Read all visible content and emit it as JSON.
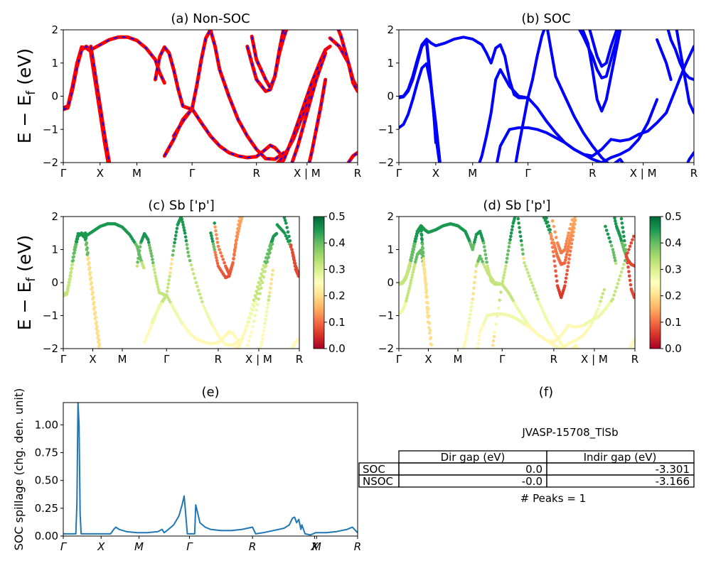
{
  "chart_data": [
    {
      "id": "a",
      "type": "line",
      "title": "(a) Non-SOC",
      "ylabel_left": "E − E",
      "ylabel_sub": "f",
      "ylabel_right": " (eV)",
      "ylim": [
        -2,
        2
      ],
      "yticks": [
        "2",
        "1",
        "0",
        "−1",
        "−2"
      ],
      "xticks": [
        "Γ",
        "X",
        "M",
        "Γ",
        "R",
        "X | M",
        "R"
      ],
      "series_colors": [
        "#ff0000",
        "#0000ff"
      ],
      "bands": [
        {
          "x": [
            0,
            0.5,
            1,
            1.5,
            2,
            2.5,
            3
          ],
          "y": [
            -0.35,
            -0.3,
            0.3,
            1.0,
            1.48,
            1.45,
            1.35
          ]
        },
        {
          "x": [
            3,
            4,
            5,
            6,
            7,
            8,
            9,
            10,
            10.5,
            11
          ],
          "y": [
            1.4,
            1.55,
            1.7,
            1.78,
            1.78,
            1.68,
            1.45,
            1.1,
            0.7,
            0.4
          ]
        },
        {
          "x": [
            0,
            0.5,
            1,
            1.5,
            2,
            2.5,
            3
          ],
          "y": [
            -0.4,
            -0.35,
            0.2,
            0.9,
            1.4,
            1.5,
            1.4
          ]
        },
        {
          "x": [
            3,
            3.5,
            4,
            4.5,
            5,
            5.5
          ],
          "y": [
            1.3,
            0.4,
            -0.5,
            -1.4,
            -2.2,
            -2.5
          ]
        },
        {
          "x": [
            3,
            3.5,
            4,
            4.5,
            5,
            5.5
          ],
          "y": [
            1.5,
            0.6,
            -0.3,
            -1.2,
            -2.0,
            -2.5
          ]
        },
        {
          "x": [
            10,
            10.5,
            11,
            11.5,
            12,
            12.5,
            13,
            14
          ],
          "y": [
            0.5,
            1.2,
            1.48,
            1.3,
            0.8,
            0.2,
            -0.3,
            -0.4
          ]
        },
        {
          "x": [
            14,
            15,
            16,
            17,
            18,
            19,
            20,
            21
          ],
          "y": [
            -0.38,
            -0.8,
            -1.2,
            -1.5,
            -1.7,
            -1.8,
            -1.85,
            -1.82
          ]
        },
        {
          "x": [
            21,
            22,
            22.5,
            23,
            23.5
          ],
          "y": [
            -1.82,
            -1.6,
            -1.48,
            -1.55,
            -1.7
          ]
        },
        {
          "x": [
            14,
            14.5,
            15,
            15.5,
            16,
            16.5,
            17
          ],
          "y": [
            -0.38,
            0.3,
            1.1,
            1.75,
            2.0,
            1.5,
            0.8
          ]
        },
        {
          "x": [
            17,
            18,
            19,
            20,
            21,
            22,
            23,
            24
          ],
          "y": [
            0.8,
            0.0,
            -0.7,
            -1.2,
            -1.6,
            -1.88,
            -1.9,
            -1.7
          ]
        },
        {
          "x": [
            11,
            12,
            13,
            14
          ],
          "y": [
            -1.8,
            -1.3,
            -0.7,
            -0.38
          ]
        },
        {
          "x": [
            12,
            13,
            14
          ],
          "y": [
            -1.2,
            -0.75,
            -0.38
          ]
        },
        {
          "x": [
            20,
            20.5,
            21,
            22,
            22.5,
            23,
            23.5,
            24,
            24.5
          ],
          "y": [
            1.5,
            1.0,
            0.5,
            0.15,
            0.2,
            0.6,
            1.3,
            1.8,
            2.2
          ]
        },
        {
          "x": [
            20.5,
            21,
            22,
            22.5,
            23,
            23.5,
            24
          ],
          "y": [
            1.8,
            1.1,
            0.5,
            0.25,
            0.6,
            1.4,
            2.1
          ]
        },
        {
          "x": [
            22,
            23,
            24,
            25,
            26,
            27,
            28,
            28.5,
            29
          ],
          "y": [
            -2.2,
            -2.1,
            -1.8,
            -1.3,
            -0.6,
            0.2,
            1.0,
            1.4,
            1.5
          ]
        },
        {
          "x": [
            23,
            24,
            25,
            26,
            27,
            28,
            28.5
          ],
          "y": [
            -2.3,
            -1.9,
            -1.2,
            -0.4,
            0.4,
            1.1,
            1.4
          ]
        },
        {
          "x": [
            24.5,
            25.5,
            26.5,
            27.5,
            28.5
          ],
          "y": [
            -2.3,
            -1.5,
            -0.5,
            0.5,
            1.3
          ]
        },
        {
          "x": [
            26.5,
            27,
            27.5,
            28,
            28.5
          ],
          "y": [
            -2.3,
            -1.7,
            -1.0,
            -0.3,
            0.5
          ]
        },
        {
          "x": [
            29,
            30,
            31,
            31.5,
            32
          ],
          "y": [
            1.75,
            1.5,
            1.0,
            0.5,
            0.2
          ]
        },
        {
          "x": [
            29.5,
            30.2,
            31,
            31.5,
            32
          ],
          "y": [
            2.3,
            1.8,
            1.0,
            0.4,
            0.15
          ]
        },
        {
          "x": [
            31,
            31.5,
            32
          ],
          "y": [
            -2.0,
            -1.8,
            -1.7
          ]
        }
      ]
    },
    {
      "id": "b",
      "type": "line",
      "title": "(b) SOC",
      "ylim": [
        -2,
        2
      ],
      "yticks": [
        "2",
        "1",
        "0",
        "−1",
        "−2"
      ],
      "xticks": [
        "Γ",
        "X",
        "M",
        "Γ",
        "R",
        "X | M",
        "R"
      ],
      "series_colors": [
        "#0000ff"
      ],
      "bands": [
        {
          "x": [
            0,
            0.5,
            1,
            1.5,
            2,
            2.5,
            3,
            3.5,
            4,
            5,
            6,
            7,
            8,
            9,
            9.5
          ],
          "y": [
            -0.02,
            0.0,
            0.2,
            0.6,
            1.1,
            1.55,
            1.72,
            1.6,
            1.52,
            1.6,
            1.72,
            1.78,
            1.72,
            1.55,
            1.3
          ]
        },
        {
          "x": [
            0,
            0.5,
            1,
            1.5,
            2,
            2.5,
            3
          ],
          "y": [
            -0.05,
            -0.02,
            0.15,
            0.5,
            1.0,
            1.5,
            1.65
          ]
        },
        {
          "x": [
            0,
            0.5,
            1,
            1.5,
            2,
            2.5,
            3,
            3.5,
            4,
            4.5
          ],
          "y": [
            -0.95,
            -0.85,
            -0.55,
            -0.1,
            0.4,
            0.85,
            0.98,
            0.3,
            -0.8,
            -2.1
          ]
        },
        {
          "x": [
            3,
            3.3,
            3.7,
            4,
            4.5
          ],
          "y": [
            1.6,
            0.8,
            -0.3,
            -1.2,
            -2.2
          ]
        },
        {
          "x": [
            3,
            3.3,
            3.7,
            4
          ],
          "y": [
            1.7,
            0.9,
            -0.2,
            -1.4
          ]
        },
        {
          "x": [
            9.5,
            10,
            10.5,
            11,
            11.5
          ],
          "y": [
            1.3,
            1.0,
            1.45,
            1.55,
            1.2
          ]
        },
        {
          "x": [
            11.5,
            12,
            12.5,
            13,
            14
          ],
          "y": [
            1.2,
            0.5,
            0.05,
            -0.05,
            -0.05
          ]
        },
        {
          "x": [
            8.5,
            9,
            9.5,
            10,
            10.5,
            11,
            12,
            13,
            14
          ],
          "y": [
            -2.2,
            -1.8,
            -1.2,
            -0.5,
            0.5,
            0.8,
            0.3,
            0.0,
            -0.05
          ]
        },
        {
          "x": [
            10.5,
            11,
            12,
            13,
            14,
            15,
            16,
            17,
            18,
            19,
            20,
            21,
            22,
            23,
            24,
            25,
            26,
            27,
            28,
            29,
            30,
            31,
            32
          ],
          "y": [
            -2.2,
            -1.5,
            -1.0,
            -0.95,
            -0.95,
            -1.0,
            -1.1,
            -1.25,
            -1.4,
            -1.6,
            -1.75,
            -1.8,
            -1.6,
            -1.3,
            -1.35,
            -1.3,
            -1.15,
            -1.05,
            -0.8,
            -0.5,
            0.2,
            0.9,
            1.5
          ]
        },
        {
          "x": [
            14,
            15,
            16,
            17,
            18,
            19,
            20,
            21,
            22,
            23,
            24,
            25,
            26,
            27,
            28
          ],
          "y": [
            -0.05,
            -0.35,
            -0.75,
            -1.1,
            -1.4,
            -1.6,
            -1.75,
            -1.9,
            -2.0,
            -1.85,
            -1.75,
            -1.6,
            -1.3,
            -0.8,
            -0.1
          ]
        },
        {
          "x": [
            14,
            14.5,
            15,
            15.5,
            16,
            16.5,
            17
          ],
          "y": [
            -0.05,
            0.5,
            1.2,
            1.8,
            2.2,
            1.4,
            0.6
          ]
        },
        {
          "x": [
            17,
            18,
            19,
            20,
            21,
            22,
            23,
            24,
            25
          ],
          "y": [
            0.6,
            0.0,
            -0.6,
            -1.1,
            -1.5,
            -1.85,
            -2.1,
            -1.9,
            -2.3
          ]
        },
        {
          "x": [
            12.5,
            13,
            14
          ],
          "y": [
            -2.3,
            -1.5,
            -0.05
          ]
        },
        {
          "x": [
            19,
            20,
            21,
            21.5,
            22,
            22.5,
            23,
            23.5,
            24,
            25
          ],
          "y": [
            2.3,
            1.8,
            1.2,
            0.8,
            0.55,
            0.6,
            1.1,
            1.6,
            2.1,
            2.5
          ]
        },
        {
          "x": [
            19.5,
            20.5,
            21,
            21.5,
            22,
            22.5,
            23,
            23.5,
            24
          ],
          "y": [
            2.3,
            1.6,
            0.8,
            -0.1,
            -0.45,
            -0.1,
            0.6,
            1.3,
            2.0
          ]
        },
        {
          "x": [
            20.5,
            21.5,
            22,
            22.5,
            23,
            24
          ],
          "y": [
            2.2,
            1.2,
            0.9,
            1.0,
            1.5,
            2.3
          ]
        },
        {
          "x": [
            28,
            29,
            29.5
          ],
          "y": [
            1.7,
            1.0,
            0.5
          ]
        },
        {
          "x": [
            29,
            29.5,
            30,
            30.5,
            31,
            31.5,
            32
          ],
          "y": [
            2.2,
            1.7,
            1.4,
            1.0,
            0.7,
            0.55,
            0.5
          ]
        },
        {
          "x": [
            30,
            30.5,
            31,
            31.5,
            32
          ],
          "y": [
            2.2,
            1.4,
            0.6,
            -0.2,
            -0.5
          ]
        },
        {
          "x": [
            31,
            31.5,
            32
          ],
          "y": [
            -2.2,
            -1.9,
            -1.7
          ]
        }
      ]
    },
    {
      "id": "c",
      "type": "scatter",
      "title": "(c)  Sb ['p']",
      "ylabel_left": "E − E",
      "ylabel_sub": "f",
      "ylabel_right": " (eV)",
      "ylim": [
        -2,
        2
      ],
      "yticks": [
        "2",
        "1",
        "0",
        "−1",
        "−2"
      ],
      "xticks": [
        "Γ",
        "X",
        "M",
        "Γ",
        "R",
        "X | M",
        "R"
      ],
      "colorbar": {
        "min": 0.0,
        "max": 0.5,
        "ticks": [
          "0.5",
          "0.4",
          "0.3",
          "0.2",
          "0.1",
          "0.0"
        ],
        "colormap": "RdYlGn"
      },
      "source_panel": "a"
    },
    {
      "id": "d",
      "type": "scatter",
      "title": "(d) Sb ['p']",
      "ylim": [
        -2,
        2
      ],
      "yticks": [
        "2",
        "1",
        "0",
        "−1",
        "−2"
      ],
      "xticks": [
        "Γ",
        "X",
        "M",
        "Γ",
        "R",
        "X | M",
        "R"
      ],
      "colorbar": {
        "min": 0.0,
        "max": 0.5,
        "ticks": [
          "0.5",
          "0.4",
          "0.3",
          "0.2",
          "0.1",
          "0.0"
        ],
        "colormap": "RdYlGn"
      },
      "source_panel": "b"
    },
    {
      "id": "e",
      "type": "line",
      "title": "(e)",
      "ylabel": "SOC spillage (chg. den. unit)",
      "ylim": [
        0,
        1.2
      ],
      "yticks": [
        "1.00",
        "0.75",
        "0.50",
        "0.25",
        "0.00"
      ],
      "yticks_values": [
        1.0,
        0.75,
        0.5,
        0.25,
        0.0
      ],
      "xticks": [
        "Γ",
        "X",
        "M",
        "Γ",
        "R",
        "X",
        "M",
        "R"
      ],
      "xticks_pos": [
        0,
        3.6,
        7.2,
        12.0,
        18.0,
        23.9,
        24.1,
        28.0
      ],
      "color": "#1f77b4",
      "x": [
        0,
        1.2,
        1.3,
        1.4,
        1.5,
        1.6,
        1.7,
        2.0,
        3.0,
        4.0,
        4.5,
        4.8,
        5.0,
        5.3,
        6.0,
        7.0,
        8.0,
        9.0,
        9.4,
        9.6,
        10.0,
        10.5,
        11.0,
        11.3,
        11.5,
        11.6,
        11.8,
        12.5,
        12.6,
        12.8,
        13.0,
        13.5,
        14.0,
        15.0,
        16.0,
        17.0,
        18.0,
        18.1,
        18.3,
        19.0,
        20.0,
        21.0,
        21.5,
        21.8,
        22.0,
        22.2,
        22.4,
        22.6,
        22.7,
        23.0,
        23.5,
        24.0,
        25.0,
        26.0,
        26.5,
        27.0,
        27.5,
        28.0
      ],
      "y": [
        0.02,
        0.02,
        0.3,
        1.2,
        1.0,
        0.2,
        0.02,
        0.02,
        0.02,
        0.02,
        0.02,
        0.06,
        0.08,
        0.06,
        0.04,
        0.03,
        0.03,
        0.04,
        0.06,
        0.03,
        0.06,
        0.1,
        0.18,
        0.28,
        0.36,
        0.25,
        0.02,
        0.02,
        0.28,
        0.2,
        0.12,
        0.08,
        0.06,
        0.05,
        0.05,
        0.06,
        0.08,
        0.06,
        0.02,
        0.03,
        0.05,
        0.07,
        0.1,
        0.16,
        0.17,
        0.12,
        0.15,
        0.06,
        0.1,
        0.02,
        0.01,
        0.03,
        0.03,
        0.04,
        0.05,
        0.06,
        0.08,
        0.03
      ]
    }
  ],
  "panel_f": {
    "title": "(f)",
    "material": "JVASP-15708_TlSb",
    "table": {
      "headers": [
        "",
        "Dir gap (eV)",
        "Indir gap (eV)"
      ],
      "rows": [
        {
          "label": "SOC",
          "dir": "0.0",
          "indir": "-3.301"
        },
        {
          "label": "NSOC",
          "dir": "-0.0",
          "indir": "-3.166"
        }
      ]
    },
    "peaks": "# Peaks = 1"
  }
}
